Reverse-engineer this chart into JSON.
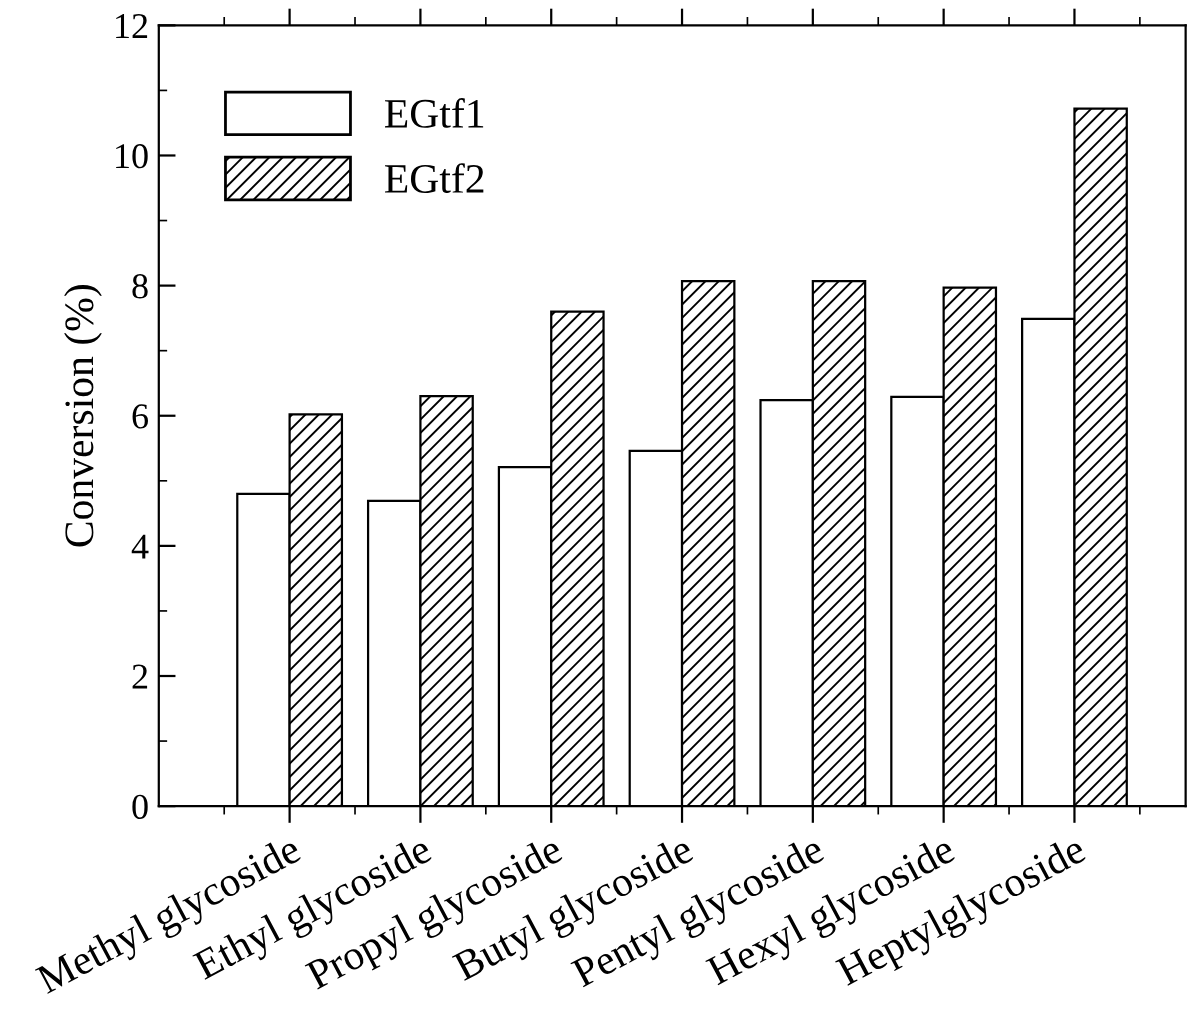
{
  "chart_data": {
    "type": "bar",
    "ylabel": "Conversion (%)",
    "categories": [
      "Methyl glycoside",
      "Ethyl glycoside",
      "Propyl glycoside",
      "Butyl glycoside",
      "Pentyl glycoside",
      "Hexyl glycoside",
      "Heptylglycoside"
    ],
    "series": [
      {
        "name": "EGtf1",
        "color": "#ffffff",
        "values": [
          4.8,
          4.69,
          5.21,
          5.46,
          6.24,
          6.29,
          7.49
        ]
      },
      {
        "name": "EGtf2",
        "color": "#000000",
        "values": [
          6.02,
          6.3,
          7.6,
          8.07,
          8.07,
          7.97,
          10.72
        ]
      }
    ],
    "ylim": [
      0,
      12
    ],
    "yticks": [
      0,
      2,
      4,
      6,
      8,
      10,
      12
    ],
    "legend": "top left",
    "grid": false
  }
}
